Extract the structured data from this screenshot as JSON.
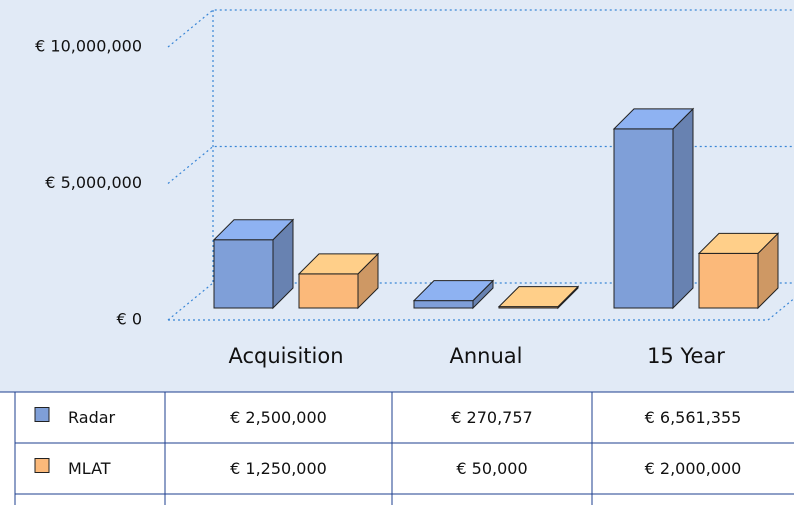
{
  "chart_data": {
    "type": "bar3d",
    "categories": [
      "Acquisition",
      "Annual",
      "15 Year"
    ],
    "series": [
      {
        "name": "Radar",
        "color": "#7f9fd8",
        "values": [
          2500000,
          270757,
          6561355
        ],
        "value_labels": [
          "€ 2,500,000",
          "€ 270,757",
          "€ 6,561,355"
        ]
      },
      {
        "name": "MLAT",
        "color": "#fbb97a",
        "values": [
          1250000,
          50000,
          2000000
        ],
        "value_labels": [
          "€ 1,250,000",
          "€ 50,000",
          "€ 2,000,000"
        ]
      }
    ],
    "ylim": [
      0,
      10000000
    ],
    "yticks": [
      {
        "value": 0,
        "label": "€ 0"
      },
      {
        "value": 5000000,
        "label": "€ 5,000,000"
      },
      {
        "value": 10000000,
        "label": "€ 10,000,000"
      }
    ],
    "grid": true
  }
}
